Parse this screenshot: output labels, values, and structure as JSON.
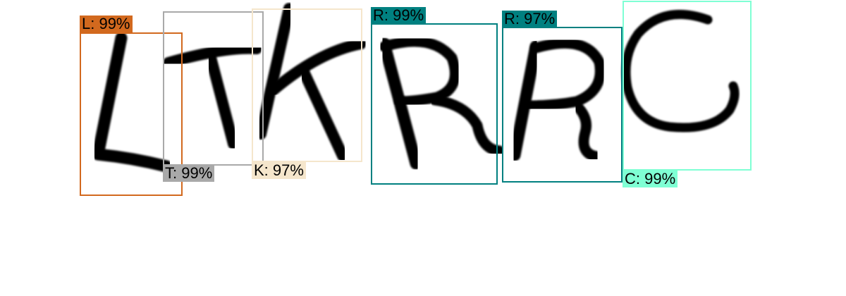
{
  "detections": [
    {
      "letter": "L",
      "label": "L: 99%",
      "confidence": 99,
      "color": "#d2691e",
      "label_position": "top"
    },
    {
      "letter": "T",
      "label": "T: 99%",
      "confidence": 99,
      "color": "#a9a9a9",
      "label_position": "bottom"
    },
    {
      "letter": "K",
      "label": "K: 97%",
      "confidence": 97,
      "color": "#f5e6cc",
      "label_position": "bottom"
    },
    {
      "letter": "R",
      "label": "R: 99%",
      "confidence": 99,
      "color": "#008080",
      "label_position": "top"
    },
    {
      "letter": "R",
      "label": "R: 97%",
      "confidence": 97,
      "color": "#008080",
      "label_position": "top"
    },
    {
      "letter": "C",
      "label": "C: 99%",
      "confidence": 99,
      "color": "#7fffd4",
      "label_position": "bottom"
    }
  ]
}
